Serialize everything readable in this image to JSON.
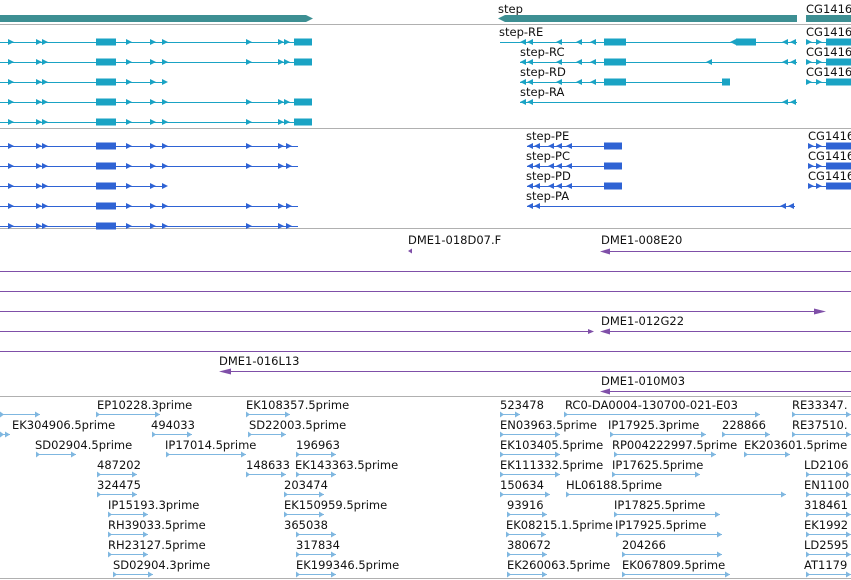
{
  "colors": {
    "gene": "#3d8f93",
    "transcript": "#1aa3c4",
    "protein": "#2f63d4",
    "clone": "#7f4fa8",
    "est": "#7fb7e0",
    "separator": "#b0b0b0",
    "text": "#111111"
  },
  "tracks": {
    "genes": {
      "items": [
        {
          "label": "step",
          "strand": "-"
        },
        {
          "label": "CG1416",
          "strand": "+"
        }
      ]
    },
    "transcripts": {
      "step_rows": [
        "step-RE",
        "step-RC",
        "step-RD",
        "step-RA"
      ],
      "cg_rows": [
        "CG1416",
        "CG1416",
        "CG1416"
      ]
    },
    "proteins": {
      "step_rows": [
        "step-PE",
        "step-PC",
        "step-PD",
        "step-PA"
      ],
      "cg_rows": [
        "CG1416",
        "CG1416",
        "CG1416"
      ]
    },
    "clones": {
      "labels": [
        "DME1-018D07.F",
        "DME1-008E20",
        "DME1-012G22",
        "DME1-016L13",
        "DME1-010M03"
      ]
    },
    "ests": {
      "labels": [
        "EP10228.3prime",
        "EK108357.5prime",
        "523478",
        "RC0-DA0004-130700-021-E03",
        "RE33347.",
        "EK304906.5prime",
        "494033",
        "SD22003.5prime",
        "EN03963.5prime",
        "IP17925.3prime",
        "228866",
        "RE37510.",
        "SD02904.5prime",
        "IP17014.5prime",
        "196963",
        "EK103405.5prime",
        "RP004222997.5prime",
        "EK203601.5prime",
        "487202",
        "148633",
        "EK143363.5prime",
        "EK111332.5prime",
        "IP17625.5prime",
        "LD2106",
        "324475",
        "203474",
        "150634",
        "HL06188.5prime",
        "EN1100",
        "IP15193.3prime",
        "EK150959.5prime",
        "93916",
        "IP17825.5prime",
        "318461",
        "RH39033.5prime",
        "365038",
        "EK08215.1.5prime",
        "IP17925.5prime",
        "EK1992",
        "RH23127.5prime",
        "317834",
        "380672",
        "204266",
        "LD2595",
        "SD02904.3prime",
        "EK199346.5prime",
        "EK260063.5prime",
        "EK067809.5prime",
        "AT1179"
      ]
    }
  }
}
